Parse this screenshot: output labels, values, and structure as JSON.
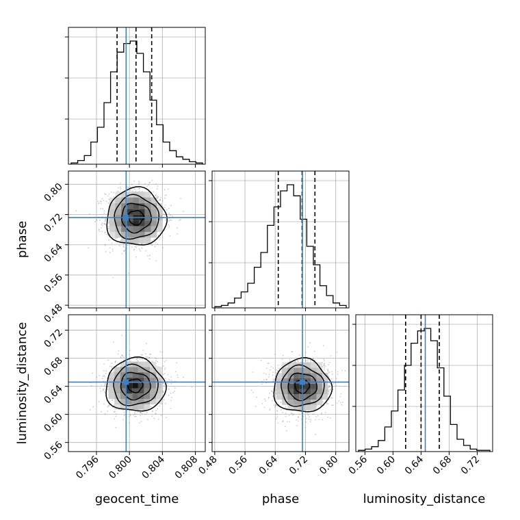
{
  "chart_data": {
    "type": "corner",
    "parameters": [
      "geocent_time",
      "phase",
      "luminosity_distance"
    ],
    "truths": {
      "geocent_time": 0.7996,
      "phase": 0.712,
      "luminosity_distance": 0.646
    },
    "quantiles": {
      "geocent_time": [
        0.7985,
        0.8008,
        0.8027
      ],
      "phase": [
        0.648,
        0.711,
        0.745
      ],
      "luminosity_distance": [
        0.618,
        0.64,
        0.666
      ]
    },
    "ranges": {
      "geocent_time": [
        0.7926,
        0.8092
      ],
      "phase": [
        0.473,
        0.835
      ],
      "luminosity_distance": [
        0.547,
        0.742
      ]
    },
    "ticks": {
      "geocent_time": [
        "0.796",
        "0.800",
        "0.804",
        "0.808"
      ],
      "phase": [
        "0.48",
        "0.56",
        "0.64",
        "0.72",
        "0.80"
      ],
      "luminosity_distance": [
        "0.56",
        "0.60",
        "0.64",
        "0.68",
        "0.72"
      ]
    },
    "histograms": {
      "geocent_time": {
        "bins": 20,
        "counts": [
          0.01,
          0.03,
          0.07,
          0.18,
          0.3,
          0.5,
          0.75,
          0.91,
          0.98,
          1.0,
          0.9,
          0.75,
          0.52,
          0.32,
          0.18,
          0.11,
          0.06,
          0.04,
          0.02,
          0.01
        ]
      },
      "phase": {
        "bins": 20,
        "counts": [
          0.01,
          0.02,
          0.04,
          0.08,
          0.13,
          0.2,
          0.33,
          0.45,
          0.67,
          0.82,
          0.95,
          1.0,
          0.91,
          0.72,
          0.5,
          0.35,
          0.18,
          0.1,
          0.04,
          0.02
        ]
      },
      "luminosity_distance": {
        "bins": 20,
        "counts": [
          0.01,
          0.02,
          0.04,
          0.09,
          0.2,
          0.33,
          0.5,
          0.7,
          0.88,
          0.98,
          1.0,
          0.9,
          0.68,
          0.45,
          0.22,
          0.1,
          0.05,
          0.02,
          0.01,
          0.01
        ]
      }
    },
    "pairs": [
      {
        "x": "geocent_time",
        "y": "phase",
        "mean": [
          0.8008,
          0.712
        ],
        "sigma": [
          0.0018,
          0.038
        ]
      },
      {
        "x": "geocent_time",
        "y": "luminosity_distance",
        "mean": [
          0.8007,
          0.641
        ],
        "sigma": [
          0.0018,
          0.019
        ]
      },
      {
        "x": "phase",
        "y": "luminosity_distance",
        "mean": [
          0.711,
          0.64
        ],
        "sigma": [
          0.038,
          0.019
        ]
      }
    ],
    "contour_levels_sigma": [
      0.5,
      1.0,
      1.5,
      2.0
    ],
    "colors": {
      "truth": "#3d7fbf",
      "line": "#000000",
      "grid": "#b0b0b0",
      "scatter": "#8c8c8c"
    },
    "grid": true
  }
}
